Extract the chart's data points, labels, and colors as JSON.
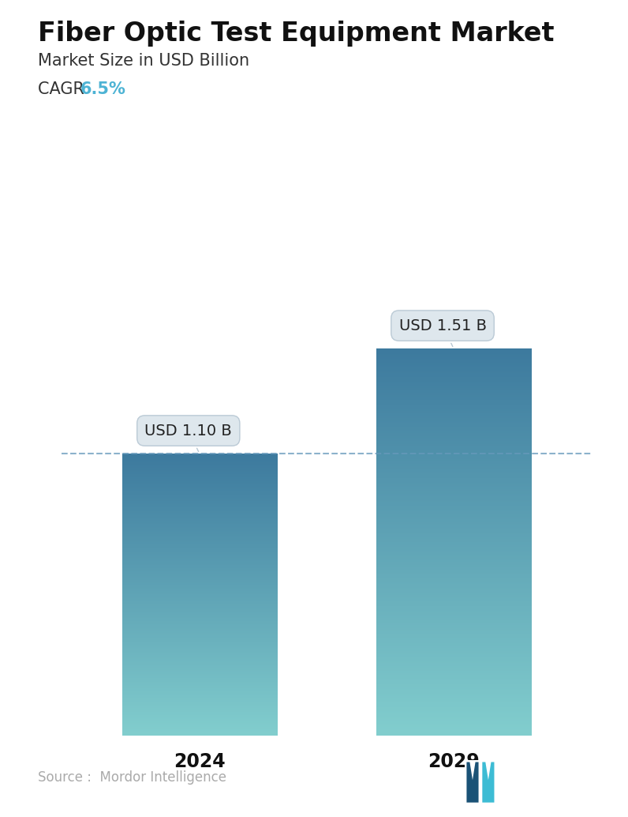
{
  "title": "Fiber Optic Test Equipment Market",
  "subtitle": "Market Size in USD Billion",
  "cagr_label": "CAGR ",
  "cagr_value": "6.5%",
  "cagr_color": "#4db3d4",
  "categories": [
    "2024",
    "2029"
  ],
  "values": [
    1.1,
    1.51
  ],
  "bar_labels": [
    "USD 1.10 B",
    "USD 1.51 B"
  ],
  "bar_color_top": "#3d7a9e",
  "bar_color_bottom": "#82cece",
  "dashed_line_color": "#6699bb",
  "dashed_line_y": 1.1,
  "source_text": "Source :  Mordor Intelligence",
  "source_color": "#aaaaaa",
  "background_color": "#ffffff",
  "title_fontsize": 24,
  "subtitle_fontsize": 15,
  "cagr_fontsize": 15,
  "bar_label_fontsize": 14,
  "xlabel_fontsize": 17,
  "source_fontsize": 12,
  "ylim": [
    0,
    1.85
  ],
  "bar_width": 0.28,
  "x_positions": [
    0.27,
    0.73
  ]
}
